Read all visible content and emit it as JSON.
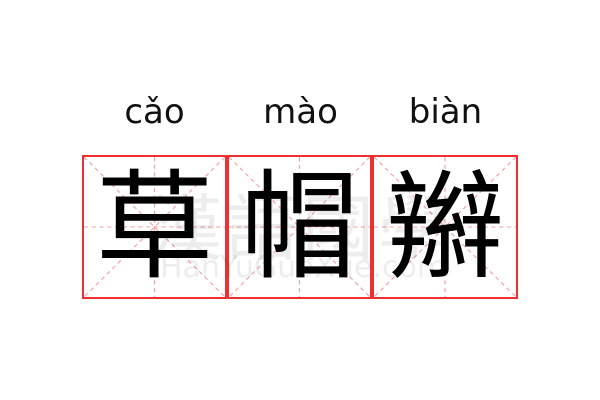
{
  "words": [
    {
      "pinyin": "cǎo",
      "hanzi": "草"
    },
    {
      "pinyin": "mào",
      "hanzi": "帽"
    },
    {
      "pinyin": "biàn",
      "hanzi": "辮"
    }
  ],
  "watermark": {
    "cn": "漢語國學",
    "en": "HanYuGuoXue.com"
  },
  "colors": {
    "grid_border": "#f03030",
    "grid_guides": "#f4a0a0"
  }
}
